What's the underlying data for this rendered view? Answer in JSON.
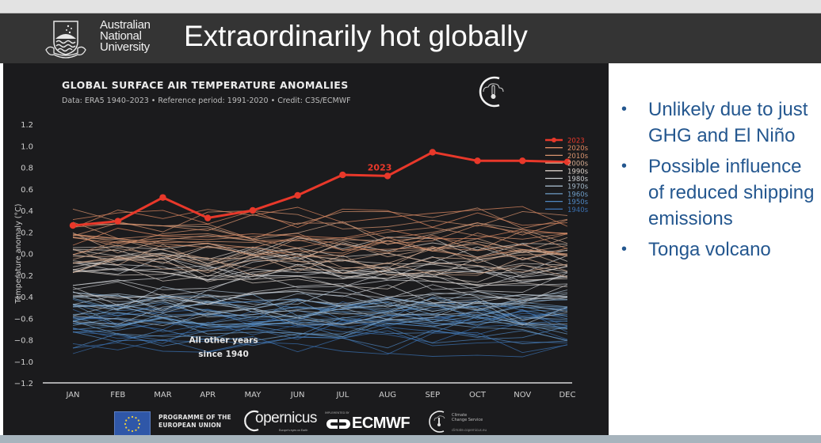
{
  "slide": {
    "title": "Extraordinarily hot globally",
    "university": [
      "Australian",
      "National",
      "University"
    ]
  },
  "chart_header": {
    "title": "GLOBAL SURFACE AIR TEMPERATURE ANOMALIES",
    "subtitle": "Data: ERA5 1940–2023 • Reference period: 1991-2020 • Credit: C3S/ECMWF"
  },
  "chart_data": {
    "type": "line",
    "title": "GLOBAL SURFACE AIR TEMPERATURE ANOMALIES",
    "xlabel": "",
    "ylabel": "Temperature anomaly (°C)",
    "categories": [
      "JAN",
      "FEB",
      "MAR",
      "APR",
      "MAY",
      "JUN",
      "JUL",
      "AUG",
      "SEP",
      "OCT",
      "NOV",
      "DEC"
    ],
    "yticks": [
      "1.2",
      "1.0",
      "0.8",
      "0.6",
      "0.4",
      "0.2",
      "0.0",
      "−0.2",
      "−0.4",
      "−0.6",
      "−0.8",
      "−1.0",
      "−1.2"
    ],
    "ylim": [
      -1.2,
      1.2
    ],
    "grid": false,
    "legend_position": "right",
    "series": [
      {
        "name": "2023",
        "color": "#e8382a",
        "values": [
          0.26,
          0.3,
          0.52,
          0.33,
          0.4,
          0.54,
          0.73,
          0.72,
          0.94,
          0.86,
          0.86,
          0.85
        ]
      }
    ],
    "background_series_note": "All other years since 1940, colored by decade",
    "decades": [
      {
        "name": "2020s",
        "color": "#e08a62"
      },
      {
        "name": "2010s",
        "color": "#d9946f"
      },
      {
        "name": "2000s",
        "color": "#d2a98f"
      },
      {
        "name": "1990s",
        "color": "#d8cfc7"
      },
      {
        "name": "1980s",
        "color": "#c9ccd0"
      },
      {
        "name": "1970s",
        "color": "#a3b7c8"
      },
      {
        "name": "1960s",
        "color": "#6e9cc6"
      },
      {
        "name": "1950s",
        "color": "#4f87c2"
      },
      {
        "name": "1940s",
        "color": "#3a6fae"
      }
    ],
    "annotations": [
      {
        "text": "2023",
        "color": "#e8382a"
      },
      {
        "text": "All other years",
        "color": "#e6e6e6"
      },
      {
        "text": "since 1940",
        "color": "#e6e6e6"
      }
    ]
  },
  "footer": {
    "eu_line1": "PROGRAMME OF THE",
    "eu_line2": "EUROPEAN UNION",
    "copernicus": "opernicus",
    "copernicus_tag": "Europe's eyes on Earth",
    "ecmwf_small": "IMPLEMENTED BY",
    "ecmwf": "ECMWF",
    "c3s_line1": "Climate",
    "c3s_line2": "Change Service",
    "c3s_url": "climate.copernicus.eu"
  },
  "bullets": [
    "Unlikely due to just GHG and El Niño",
    "Possible influence of reduced shipping emissions",
    "Tonga volcano"
  ]
}
